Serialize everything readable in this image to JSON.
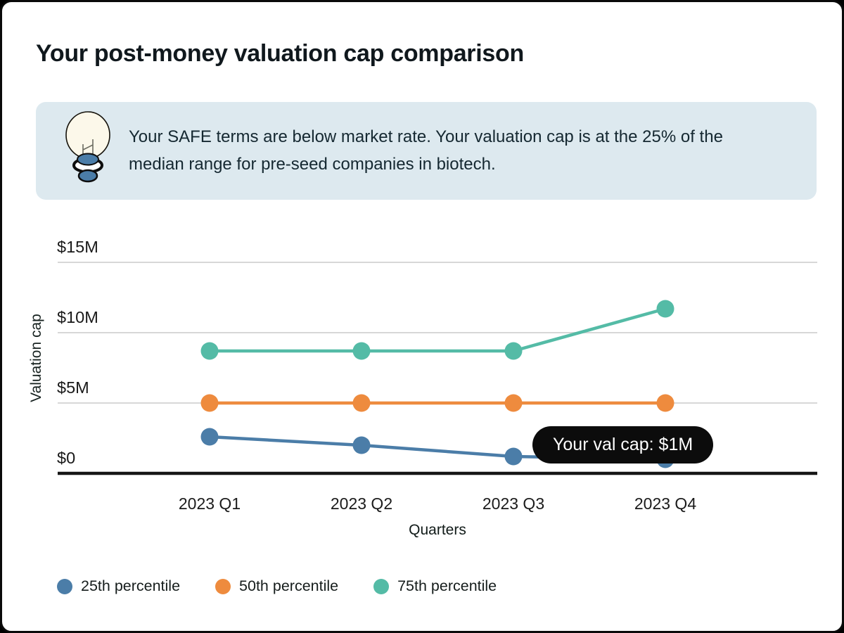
{
  "page": {
    "title": "Your post-money valuation cap comparison"
  },
  "callout": {
    "icon": "lightbulb-icon",
    "text": "Your SAFE terms are below market rate. Your valuation cap is at the 25% of the median range for pre-seed companies in biotech.",
    "background": "#dde9ef"
  },
  "tooltip": {
    "label": "Your val cap: $1M",
    "anchor_x": "2023 Q4",
    "anchor_value": 1,
    "background": "#0c0c0c",
    "text_color": "#ffffff"
  },
  "chart_data": {
    "type": "line",
    "title": "Your post-money valuation cap comparison",
    "categories": [
      "2023 Q1",
      "2023 Q2",
      "2023 Q3",
      "2023 Q4"
    ],
    "xlabel": "Quarters",
    "ylabel": "Valuation cap",
    "yticks": [
      0,
      5,
      10,
      15
    ],
    "ytick_labels": [
      "$0",
      "$5M",
      "$10M",
      "$15M"
    ],
    "ylim": [
      0,
      17.5
    ],
    "grid": true,
    "legend_position": "bottom",
    "series": [
      {
        "name": "25th percentile",
        "color": "#4b7da8",
        "values": [
          2.6,
          2.0,
          1.2,
          1.0
        ]
      },
      {
        "name": "50th percentile",
        "color": "#ee8b3e",
        "values": [
          5.0,
          5.0,
          5.0,
          5.0
        ]
      },
      {
        "name": "75th percentile",
        "color": "#54bba6",
        "values": [
          8.7,
          8.7,
          8.7,
          11.7
        ]
      }
    ],
    "annotations": [
      {
        "text": "Your val cap: $1M",
        "x": "2023 Q4",
        "value": 1
      }
    ],
    "gridline_color": "#d7d7d7",
    "axis_color": "#161616"
  }
}
